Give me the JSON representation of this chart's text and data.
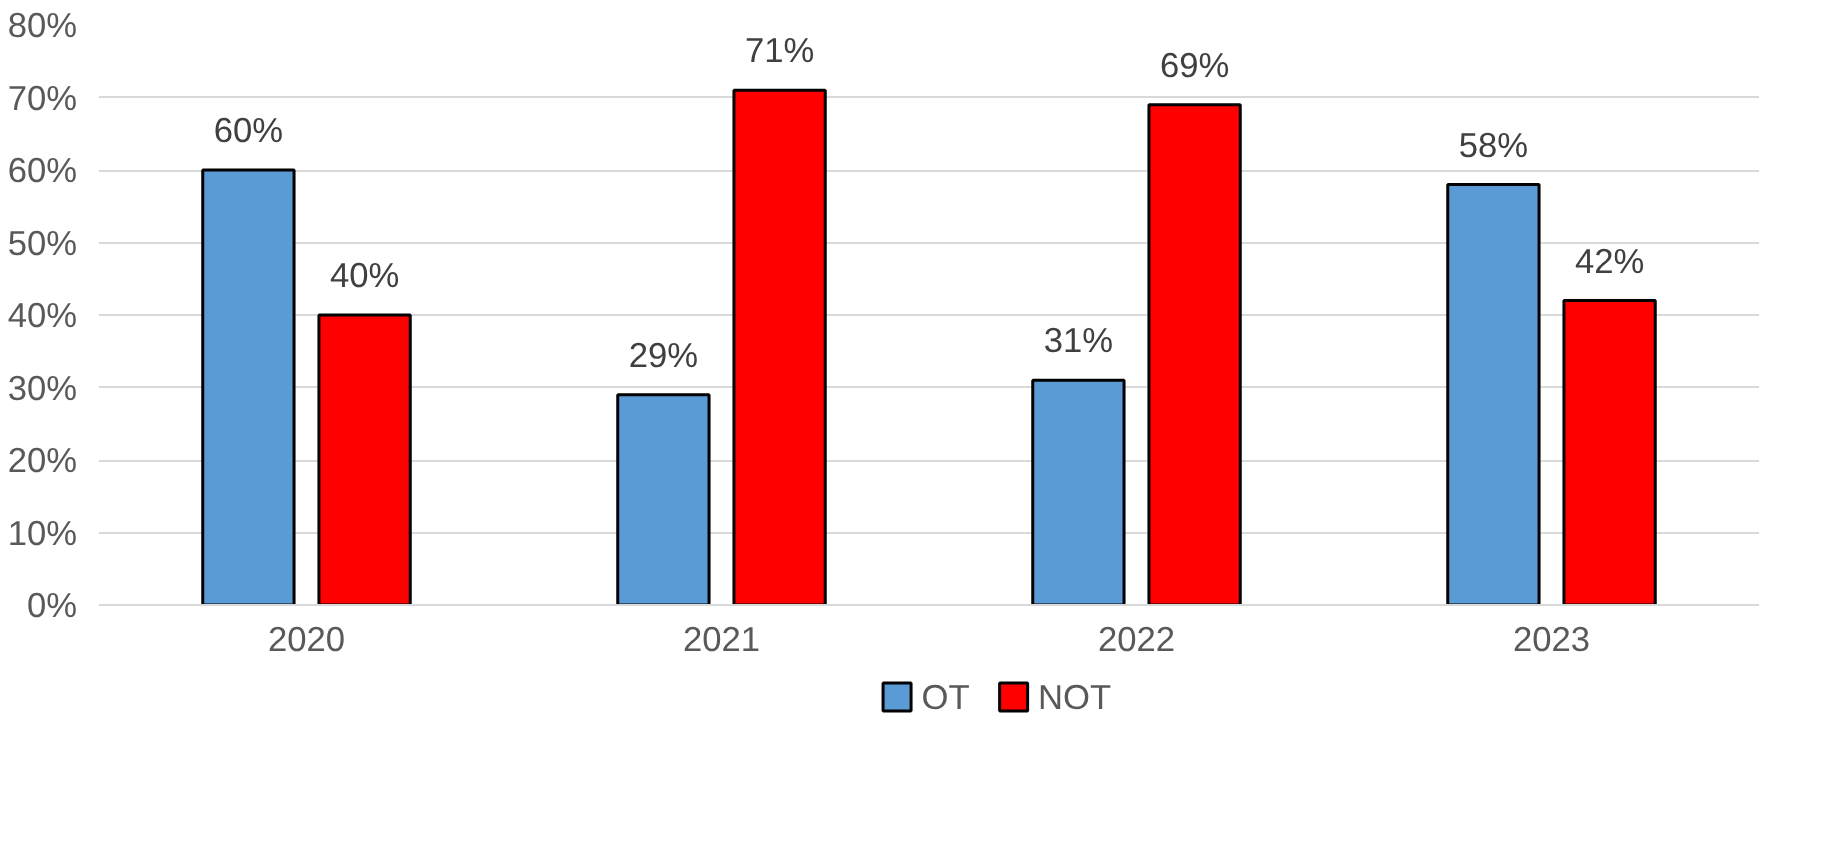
{
  "chart_data": {
    "type": "bar",
    "categories": [
      "2020",
      "2021",
      "2022",
      "2023"
    ],
    "series": [
      {
        "name": "OT",
        "color": "#5b9bd5",
        "values": [
          60,
          29,
          31,
          58
        ],
        "value_labels": [
          "60%",
          "29%",
          "31%",
          "58%"
        ]
      },
      {
        "name": "NOT",
        "color": "#ff0000",
        "values": [
          40,
          71,
          69,
          42
        ],
        "value_labels": [
          "40%",
          "71%",
          "69%",
          "42%"
        ]
      }
    ],
    "ylim": [
      0,
      80
    ],
    "yticks": [
      {
        "value": 0,
        "label": "0%"
      },
      {
        "value": 10,
        "label": "10%"
      },
      {
        "value": 20,
        "label": "20%"
      },
      {
        "value": 30,
        "label": "30%"
      },
      {
        "value": 40,
        "label": "40%"
      },
      {
        "value": 50,
        "label": "50%"
      },
      {
        "value": 60,
        "label": "60%"
      },
      {
        "value": 70,
        "label": "70%"
      },
      {
        "value": 80,
        "label": "80%"
      }
    ],
    "grid": "y",
    "legend": "bottom"
  }
}
